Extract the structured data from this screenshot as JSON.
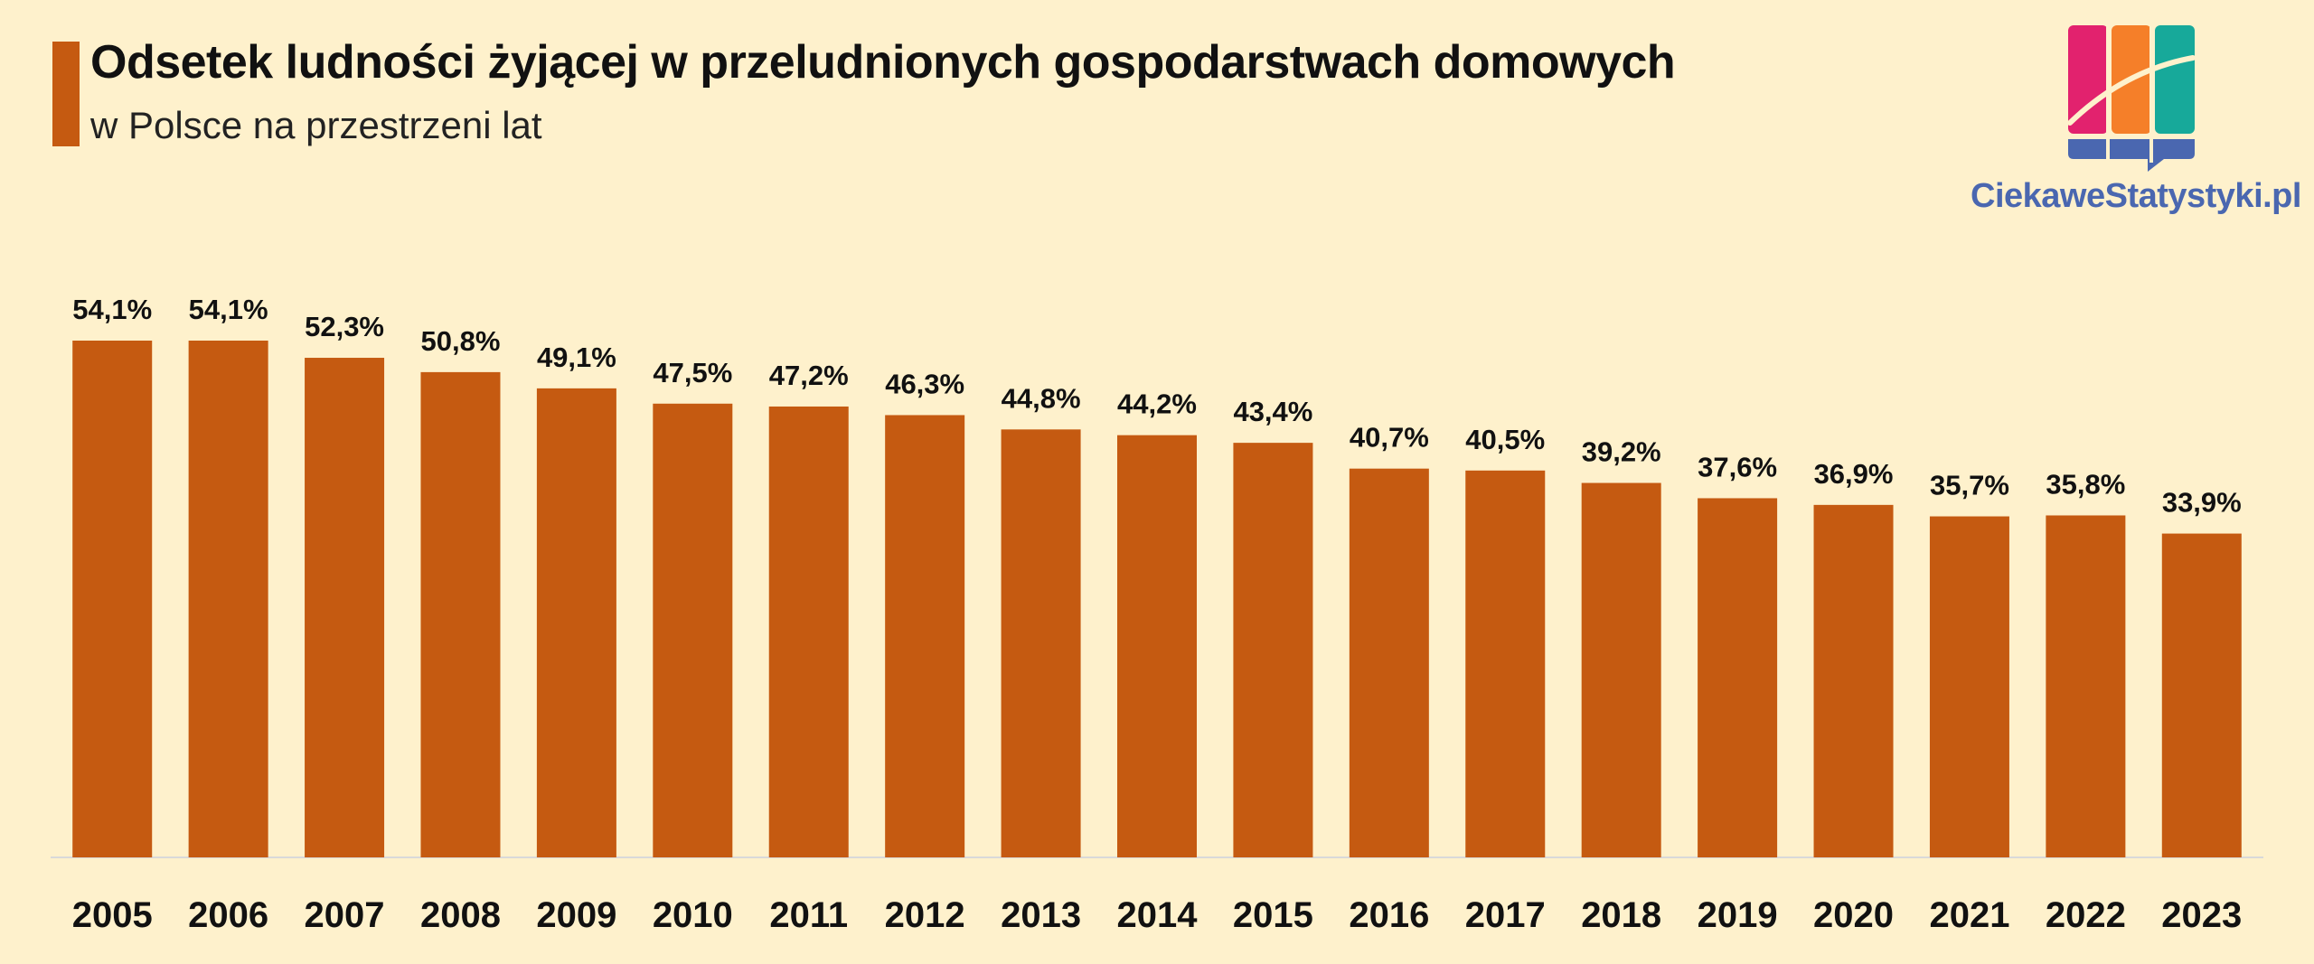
{
  "header": {
    "title": "Odsetek ludności żyjącej w przeludnionych gospodarstwach domowych",
    "subtitle": "w Polsce na przestrzeni lat"
  },
  "brand": {
    "name": "CiekaweStatystyki.pl",
    "logo_colors": [
      "#E2226E",
      "#F57F29",
      "#17A99A",
      "#4A67B0"
    ]
  },
  "colors": {
    "bar": "#C55A11",
    "background": "#FEF1CC",
    "accent": "#C55A11"
  },
  "chart_data": {
    "type": "bar",
    "title": "Odsetek ludności żyjącej w przeludnionych gospodarstwach domowych",
    "subtitle": "w Polsce na przestrzeni lat",
    "categories": [
      "2005",
      "2006",
      "2007",
      "2008",
      "2009",
      "2010",
      "2011",
      "2012",
      "2013",
      "2014",
      "2015",
      "2016",
      "2017",
      "2018",
      "2019",
      "2020",
      "2021",
      "2022",
      "2023"
    ],
    "values": [
      54.1,
      54.1,
      52.3,
      50.8,
      49.1,
      47.5,
      47.2,
      46.3,
      44.8,
      44.2,
      43.4,
      40.7,
      40.5,
      39.2,
      37.6,
      36.9,
      35.7,
      35.8,
      33.9
    ],
    "labels": [
      "54,1%",
      "54,1%",
      "52,3%",
      "50,8%",
      "49,1%",
      "47,5%",
      "47,2%",
      "46,3%",
      "44,8%",
      "44,2%",
      "43,4%",
      "40,7%",
      "40,5%",
      "39,2%",
      "37,6%",
      "36,9%",
      "35,7%",
      "35,8%",
      "33,9%"
    ],
    "unit": "%",
    "ylim": [
      0,
      54.1
    ],
    "grid": false,
    "legend": "none"
  }
}
